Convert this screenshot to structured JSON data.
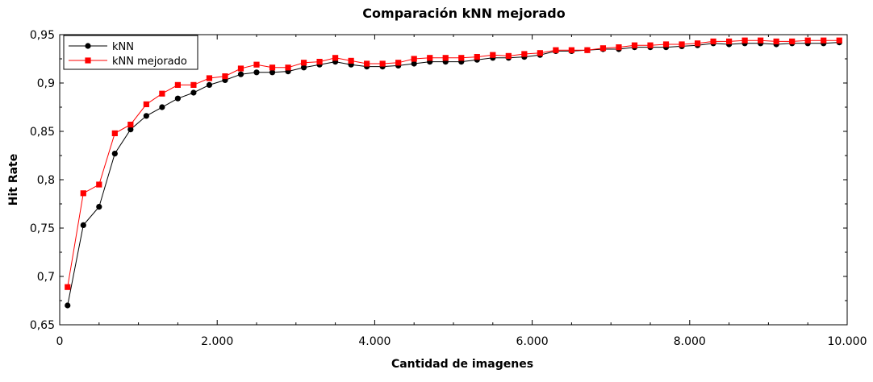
{
  "chart_data": {
    "type": "line",
    "title": "Comparación kNN mejorado",
    "xlabel": "Cantidad de imagenes",
    "ylabel": "Hit Rate",
    "xlim": [
      0,
      10000
    ],
    "ylim": [
      0.65,
      0.95
    ],
    "x_ticks": [
      {
        "value": 0,
        "label": "0"
      },
      {
        "value": 2000,
        "label": "2.000"
      },
      {
        "value": 4000,
        "label": "4.000"
      },
      {
        "value": 6000,
        "label": "6.000"
      },
      {
        "value": 8000,
        "label": "8.000"
      },
      {
        "value": 10000,
        "label": "10.000"
      }
    ],
    "y_ticks": [
      {
        "value": 0.65,
        "label": "0,65"
      },
      {
        "value": 0.7,
        "label": "0,7"
      },
      {
        "value": 0.75,
        "label": "0,75"
      },
      {
        "value": 0.8,
        "label": "0,8"
      },
      {
        "value": 0.85,
        "label": "0,85"
      },
      {
        "value": 0.9,
        "label": "0,9"
      },
      {
        "value": 0.95,
        "label": "0,95"
      }
    ],
    "grid": false,
    "legend_position": "top-left",
    "x": [
      100,
      300,
      500,
      700,
      900,
      1100,
      1300,
      1500,
      1700,
      1900,
      2100,
      2300,
      2500,
      2700,
      2900,
      3100,
      3300,
      3500,
      3700,
      3900,
      4100,
      4300,
      4500,
      4700,
      4900,
      5100,
      5300,
      5500,
      5700,
      5900,
      6100,
      6300,
      6500,
      6700,
      6900,
      7100,
      7300,
      7500,
      7700,
      7900,
      8100,
      8300,
      8500,
      8700,
      8900,
      9100,
      9300,
      9500,
      9700,
      9900
    ],
    "series": [
      {
        "name": "kNN",
        "color": "#000000",
        "marker": "circle",
        "values": [
          0.67,
          0.753,
          0.772,
          0.827,
          0.852,
          0.866,
          0.875,
          0.884,
          0.89,
          0.898,
          0.903,
          0.909,
          0.911,
          0.911,
          0.912,
          0.916,
          0.919,
          0.922,
          0.919,
          0.917,
          0.917,
          0.918,
          0.92,
          0.922,
          0.922,
          0.922,
          0.924,
          0.926,
          0.926,
          0.927,
          0.929,
          0.933,
          0.933,
          0.934,
          0.935,
          0.935,
          0.937,
          0.937,
          0.937,
          0.938,
          0.939,
          0.941,
          0.94,
          0.941,
          0.941,
          0.94,
          0.941,
          0.941,
          0.941,
          0.942
        ]
      },
      {
        "name": "kNN mejorado",
        "color": "#ff0000",
        "marker": "square",
        "values": [
          0.689,
          0.786,
          0.795,
          0.848,
          0.857,
          0.878,
          0.889,
          0.898,
          0.898,
          0.905,
          0.907,
          0.915,
          0.919,
          0.916,
          0.916,
          0.921,
          0.922,
          0.926,
          0.923,
          0.92,
          0.92,
          0.921,
          0.925,
          0.926,
          0.926,
          0.926,
          0.927,
          0.929,
          0.928,
          0.93,
          0.931,
          0.934,
          0.934,
          0.934,
          0.936,
          0.937,
          0.939,
          0.939,
          0.94,
          0.94,
          0.941,
          0.943,
          0.943,
          0.944,
          0.944,
          0.943,
          0.943,
          0.944,
          0.944,
          0.944
        ]
      }
    ]
  }
}
